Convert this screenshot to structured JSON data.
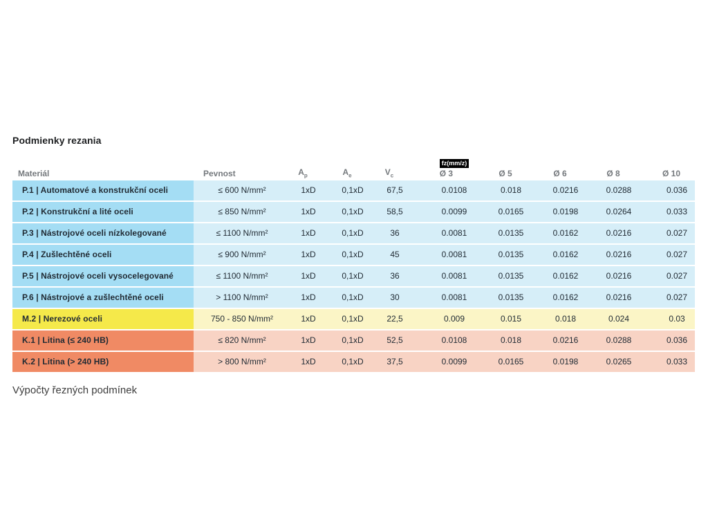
{
  "page": {
    "title": "Podmienky rezania",
    "footer": "Výpočty řezných podmínek"
  },
  "table": {
    "headers": {
      "material": "Materiál",
      "pevnost": "Pevnost",
      "ap_base": "A",
      "ap_sub": "p",
      "ae_base": "A",
      "ae_sub": "e",
      "vc_base": "V",
      "vc_sub": "c",
      "fz_badge": "fz(mm/z)",
      "d3": "Ø 3",
      "d5": "Ø 5",
      "d6": "Ø 6",
      "d8": "Ø 8",
      "d10": "Ø 10"
    },
    "rows": [
      {
        "type": "steel",
        "material": "P.1 | Automatové a konstrukční oceli",
        "pevnost": "≤ 600 N/mm²",
        "ap": "1xD",
        "ae": "0,1xD",
        "vc": "67,5",
        "d3": "0.0108",
        "d5": "0.018",
        "d6": "0.0216",
        "d8": "0.0288",
        "d10": "0.036"
      },
      {
        "type": "steel",
        "material": "P.2 | Konstrukční a lité oceli",
        "pevnost": "≤ 850 N/mm²",
        "ap": "1xD",
        "ae": "0,1xD",
        "vc": "58,5",
        "d3": "0.0099",
        "d5": "0.0165",
        "d6": "0.0198",
        "d8": "0.0264",
        "d10": "0.033"
      },
      {
        "type": "steel",
        "material": "P.3 | Nástrojové oceli nízkolegované",
        "pevnost": "≤ 1100 N/mm²",
        "ap": "1xD",
        "ae": "0,1xD",
        "vc": "36",
        "d3": "0.0081",
        "d5": "0.0135",
        "d6": "0.0162",
        "d8": "0.0216",
        "d10": "0.027"
      },
      {
        "type": "steel",
        "material": "P.4 | Zušlechtěné oceli",
        "pevnost": "≤ 900 N/mm²",
        "ap": "1xD",
        "ae": "0,1xD",
        "vc": "45",
        "d3": "0.0081",
        "d5": "0.0135",
        "d6": "0.0162",
        "d8": "0.0216",
        "d10": "0.027"
      },
      {
        "type": "steel",
        "material": "P.5 | Nástrojové oceli vysocelegované",
        "pevnost": "≤ 1100 N/mm²",
        "ap": "1xD",
        "ae": "0,1xD",
        "vc": "36",
        "d3": "0.0081",
        "d5": "0.0135",
        "d6": "0.0162",
        "d8": "0.0216",
        "d10": "0.027"
      },
      {
        "type": "steel",
        "material": "P.6 | Nástrojové a zušlechtěné oceli",
        "pevnost": "> 1100 N/mm²",
        "ap": "1xD",
        "ae": "0,1xD",
        "vc": "30",
        "d3": "0.0081",
        "d5": "0.0135",
        "d6": "0.0162",
        "d8": "0.0216",
        "d10": "0.027"
      },
      {
        "type": "stainless",
        "material": "M.2 | Nerezové oceli",
        "pevnost": "750 - 850 N/mm²",
        "ap": "1xD",
        "ae": "0,1xD",
        "vc": "22,5",
        "d3": "0.009",
        "d5": "0.015",
        "d6": "0.018",
        "d8": "0.024",
        "d10": "0.03"
      },
      {
        "type": "cast_iron",
        "material": "K.1 | Litina (≤ 240 HB)",
        "pevnost": "≤ 820 N/mm²",
        "ap": "1xD",
        "ae": "0,1xD",
        "vc": "52,5",
        "d3": "0.0108",
        "d5": "0.018",
        "d6": "0.0216",
        "d8": "0.0288",
        "d10": "0.036"
      },
      {
        "type": "cast_iron",
        "material": "K.2 | Litina (> 240 HB)",
        "pevnost": "> 800 N/mm²",
        "ap": "1xD",
        "ae": "0,1xD",
        "vc": "37,5",
        "d3": "0.0099",
        "d5": "0.0165",
        "d6": "0.0198",
        "d8": "0.0265",
        "d10": "0.033"
      }
    ]
  },
  "colors": {
    "steel_label_bg": "#a4ddf4",
    "steel_cell_bg": "#d6eef8",
    "stainless_label_bg": "#f5e94a",
    "stainless_cell_bg": "#fbf5c6",
    "cast_iron_label_bg": "#f08a64",
    "cast_iron_cell_bg": "#f8d3c4",
    "badge_bg": "#000000",
    "badge_text": "#ffffff",
    "header_text": "#75797d",
    "body_text": "#212b34",
    "title_text": "#1d1f21",
    "footer_text": "#3c3c3c"
  }
}
